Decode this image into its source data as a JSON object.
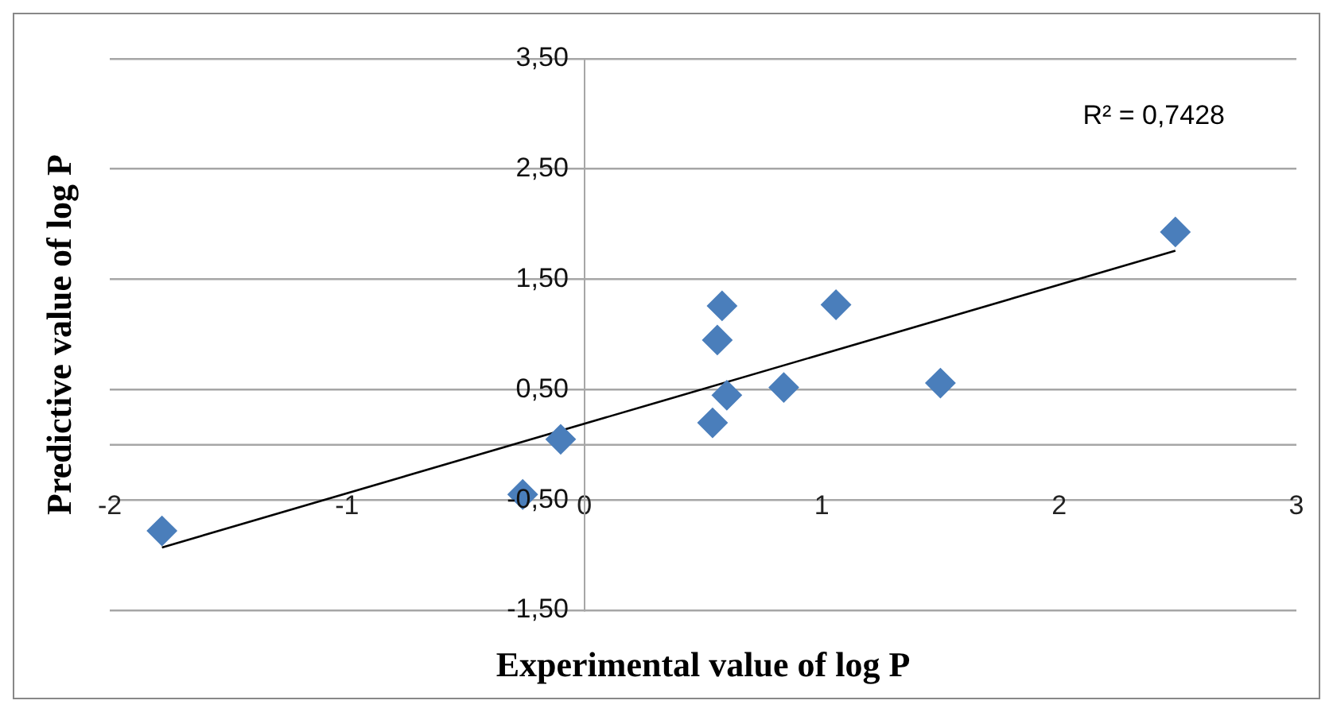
{
  "chart_data": {
    "type": "scatter",
    "xlabel": "Experimental value of log P",
    "ylabel": "Predictive value of log P",
    "xlim": [
      -2,
      3
    ],
    "xticks": [
      -2,
      -1,
      0,
      1,
      2,
      3
    ],
    "ylim": [
      -1.5,
      3.5
    ],
    "yticks": [
      {
        "value": -1.5,
        "label": "-1,50"
      },
      {
        "value": -0.5,
        "label": "-0,50"
      },
      {
        "value": 0.5,
        "label": "0,50"
      },
      {
        "value": 1.5,
        "label": "1,50"
      },
      {
        "value": 2.5,
        "label": "2,50"
      },
      {
        "value": 3.5,
        "label": "3,50"
      }
    ],
    "grid": "y",
    "marker": "diamond",
    "series": [
      {
        "type": "scatter",
        "color": "#4a7ebb",
        "x": [
          -1.78,
          -0.26,
          -0.1,
          0.54,
          0.56,
          0.58,
          0.6,
          0.84,
          1.06,
          1.5,
          2.49
        ],
        "values": [
          -0.78,
          -0.45,
          0.05,
          0.2,
          0.95,
          1.26,
          0.45,
          0.52,
          1.27,
          0.56,
          1.93
        ]
      },
      {
        "type": "line",
        "color": "#000000",
        "marker": "none",
        "x": [
          -1.78,
          2.49
        ],
        "values": [
          -0.93,
          1.76
        ]
      }
    ],
    "ref_lines": [
      {
        "axis": "y",
        "value": 0,
        "color": "#a6a6a6"
      }
    ],
    "annotations": [
      "R² = 0,7428"
    ]
  }
}
